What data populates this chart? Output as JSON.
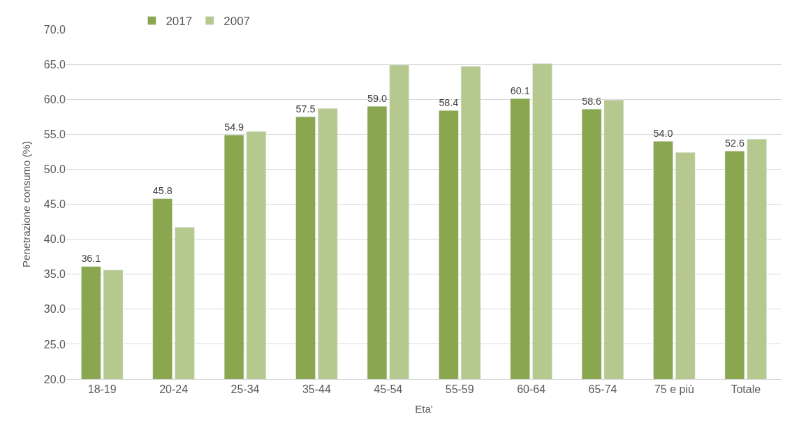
{
  "chart_data": {
    "type": "bar",
    "xlabel": "Eta'",
    "ylabel": "Penetrazione consumo (%)",
    "categories": [
      "18-19",
      "20-24",
      "25-34",
      "35-44",
      "45-54",
      "55-59",
      "60-64",
      "65-74",
      "75 e più",
      "Totale"
    ],
    "series": [
      {
        "name": "2017",
        "color": "#8aa64f",
        "values": [
          36.1,
          45.8,
          54.9,
          57.5,
          59.0,
          58.4,
          60.1,
          58.6,
          54.0,
          52.6
        ],
        "value_labels": [
          "36.1",
          "45.8",
          "54.9",
          "57.5",
          "59.0",
          "58.4",
          "60.1",
          "58.6",
          "54.0",
          "52.6"
        ]
      },
      {
        "name": "2007",
        "color": "#b5c98f",
        "values": [
          35.6,
          41.7,
          55.4,
          58.7,
          64.9,
          64.7,
          65.1,
          59.9,
          52.4,
          54.3
        ]
      }
    ],
    "ylim": [
      20,
      70
    ],
    "yticks": [
      {
        "value": 20,
        "label": "20.0"
      },
      {
        "value": 25,
        "label": "25.0"
      },
      {
        "value": 30,
        "label": "30.0"
      },
      {
        "value": 35,
        "label": "35.0"
      },
      {
        "value": 40,
        "label": "40.0"
      },
      {
        "value": 45,
        "label": "45.0"
      },
      {
        "value": 50,
        "label": "50.0"
      },
      {
        "value": 55,
        "label": "55.0"
      },
      {
        "value": 60,
        "label": "60.0"
      },
      {
        "value": 65,
        "label": "65.0"
      },
      {
        "value": 70,
        "label": "70.0"
      }
    ],
    "grid": "y",
    "legend": "top left"
  }
}
